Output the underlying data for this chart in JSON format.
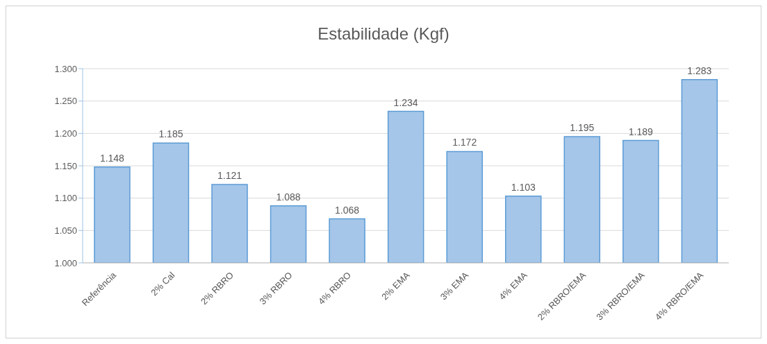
{
  "chart_data": {
    "type": "bar",
    "title": "Estabilidade (Kgf)",
    "categories": [
      "Referência",
      "2% Cal",
      "2% RBRO",
      "3% RBRO",
      "4% RBRO",
      "2% EMA",
      "3% EMA",
      "4% EMA",
      "2% RBRO/EMA",
      "3% RBRO/EMA",
      "4% RBRO/EMA"
    ],
    "values": [
      1148,
      1185,
      1121,
      1088,
      1068,
      1234,
      1172,
      1103,
      1195,
      1189,
      1283
    ],
    "value_labels": [
      "1.148",
      "1.185",
      "1.121",
      "1.088",
      "1.068",
      "1.234",
      "1.172",
      "1.103",
      "1.195",
      "1.189",
      "1.283"
    ],
    "color": "#a5c6e9",
    "ylim": [
      1000,
      1300
    ],
    "yticks": [
      {
        "value": 1000,
        "label": "1.000"
      },
      {
        "value": 1050,
        "label": "1.050"
      },
      {
        "value": 1100,
        "label": "1.100"
      },
      {
        "value": 1150,
        "label": "1.150"
      },
      {
        "value": 1200,
        "label": "1.200"
      },
      {
        "value": 1250,
        "label": "1.250"
      },
      {
        "value": 1300,
        "label": "1.300"
      }
    ],
    "grid": "y",
    "legend": false
  }
}
